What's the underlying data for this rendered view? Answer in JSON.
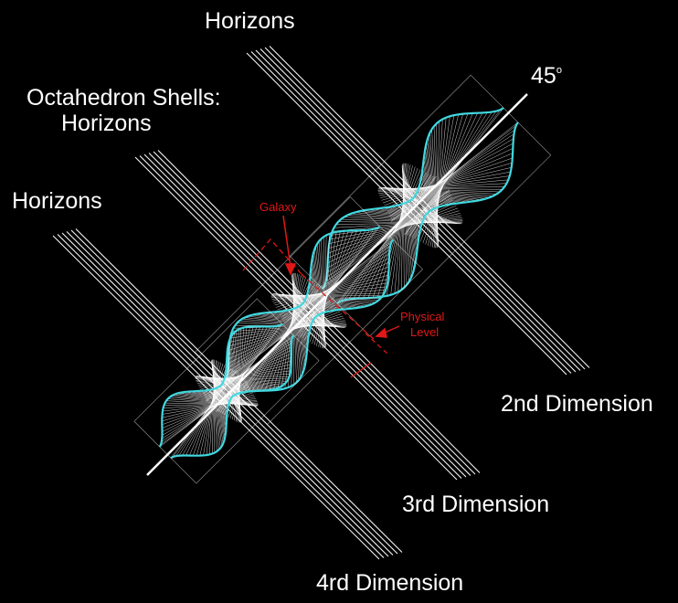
{
  "labels": {
    "horizons_top": "Horizons",
    "octahedron_line1": "Octahedron Shells:",
    "octahedron_line2": "Horizons",
    "horizons_left": "Horizons",
    "angle_value": "45",
    "angle_unit": "o",
    "dim_2": "2nd Dimension",
    "dim_3": "3rd Dimension",
    "dim_4": "4rd Dimension",
    "galaxy": "Galaxy",
    "physical_line1": "Physical",
    "physical_line2": "Level"
  },
  "colors": {
    "background": "#000000",
    "lines": "#ffffff",
    "shell_outline": "#40d8e0",
    "annotation": "#e01818"
  }
}
